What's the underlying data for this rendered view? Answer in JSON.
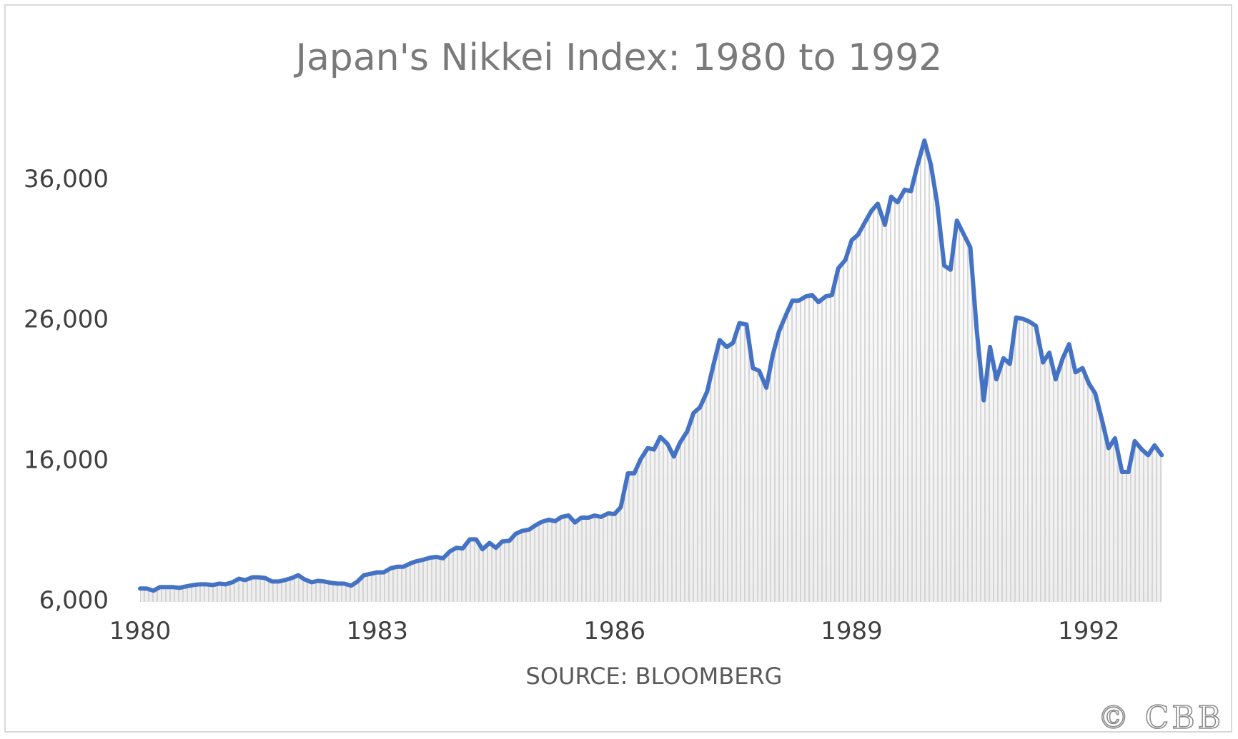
{
  "chart_data": {
    "type": "line",
    "title": "Japan's Nikkei Index: 1980 to 1992",
    "xlabel": "SOURCE: BLOOMBERG",
    "ylabel": "",
    "ylim": [
      6000,
      38800
    ],
    "xlim": [
      1980.0,
      1993.0
    ],
    "y_ticks": [
      6000,
      16000,
      26000,
      36000
    ],
    "y_tick_labels": [
      "6,000",
      "16,000",
      "26,000",
      "36,000"
    ],
    "x_ticks": [
      1980,
      1983,
      1986,
      1989,
      1992
    ],
    "x_tick_labels": [
      "1980",
      "1983",
      "1986",
      "1989",
      "1992"
    ],
    "grid": false,
    "legend": "none",
    "fill_style": "vertical-hatch-area",
    "colors": {
      "line": "#4472c4",
      "hatch": "#c9c9c9",
      "area_top": "#ffffff",
      "area_bottom": "#eeeeee"
    },
    "series": [
      {
        "values": [
          [
            1980.0,
            6800
          ],
          [
            1980.08,
            6800
          ],
          [
            1980.17,
            6650
          ],
          [
            1980.25,
            6900
          ],
          [
            1980.33,
            6900
          ],
          [
            1980.42,
            6900
          ],
          [
            1980.5,
            6850
          ],
          [
            1980.58,
            6950
          ],
          [
            1980.67,
            7050
          ],
          [
            1980.75,
            7100
          ],
          [
            1980.83,
            7100
          ],
          [
            1980.92,
            7050
          ],
          [
            1981.0,
            7150
          ],
          [
            1981.08,
            7100
          ],
          [
            1981.17,
            7250
          ],
          [
            1981.25,
            7500
          ],
          [
            1981.33,
            7400
          ],
          [
            1981.42,
            7600
          ],
          [
            1981.5,
            7600
          ],
          [
            1981.58,
            7550
          ],
          [
            1981.67,
            7300
          ],
          [
            1981.75,
            7300
          ],
          [
            1981.83,
            7400
          ],
          [
            1981.92,
            7550
          ],
          [
            1982.0,
            7750
          ],
          [
            1982.08,
            7450
          ],
          [
            1982.17,
            7250
          ],
          [
            1982.25,
            7350
          ],
          [
            1982.33,
            7300
          ],
          [
            1982.42,
            7200
          ],
          [
            1982.5,
            7150
          ],
          [
            1982.58,
            7150
          ],
          [
            1982.67,
            7000
          ],
          [
            1982.75,
            7300
          ],
          [
            1982.83,
            7750
          ],
          [
            1982.92,
            7850
          ],
          [
            1983.0,
            7950
          ],
          [
            1983.08,
            7950
          ],
          [
            1983.17,
            8250
          ],
          [
            1983.25,
            8350
          ],
          [
            1983.33,
            8350
          ],
          [
            1983.42,
            8600
          ],
          [
            1983.5,
            8750
          ],
          [
            1983.58,
            8850
          ],
          [
            1983.67,
            9000
          ],
          [
            1983.75,
            9050
          ],
          [
            1983.83,
            8950
          ],
          [
            1983.92,
            9450
          ],
          [
            1984.0,
            9700
          ],
          [
            1984.08,
            9650
          ],
          [
            1984.17,
            10300
          ],
          [
            1984.25,
            10300
          ],
          [
            1984.33,
            9600
          ],
          [
            1984.42,
            10050
          ],
          [
            1984.5,
            9700
          ],
          [
            1984.58,
            10150
          ],
          [
            1984.67,
            10200
          ],
          [
            1984.75,
            10700
          ],
          [
            1984.83,
            10900
          ],
          [
            1984.92,
            11000
          ],
          [
            1985.0,
            11300
          ],
          [
            1985.08,
            11550
          ],
          [
            1985.17,
            11700
          ],
          [
            1985.25,
            11600
          ],
          [
            1985.33,
            11900
          ],
          [
            1985.42,
            12000
          ],
          [
            1985.5,
            11500
          ],
          [
            1985.58,
            11850
          ],
          [
            1985.67,
            11850
          ],
          [
            1985.75,
            12000
          ],
          [
            1985.83,
            11900
          ],
          [
            1985.92,
            12150
          ],
          [
            1986.0,
            12100
          ],
          [
            1986.08,
            12600
          ],
          [
            1986.17,
            15000
          ],
          [
            1986.25,
            15000
          ],
          [
            1986.33,
            16000
          ],
          [
            1986.42,
            16800
          ],
          [
            1986.5,
            16700
          ],
          [
            1986.58,
            17600
          ],
          [
            1986.67,
            17100
          ],
          [
            1986.75,
            16200
          ],
          [
            1986.83,
            17200
          ],
          [
            1986.92,
            18000
          ],
          [
            1987.0,
            19300
          ],
          [
            1987.08,
            19700
          ],
          [
            1987.17,
            20800
          ],
          [
            1987.25,
            22700
          ],
          [
            1987.33,
            24500
          ],
          [
            1987.42,
            24000
          ],
          [
            1987.5,
            24300
          ],
          [
            1987.58,
            25700
          ],
          [
            1987.67,
            25600
          ],
          [
            1987.75,
            22500
          ],
          [
            1987.83,
            22300
          ],
          [
            1987.92,
            21100
          ],
          [
            1988.0,
            23400
          ],
          [
            1988.08,
            25100
          ],
          [
            1988.17,
            26300
          ],
          [
            1988.25,
            27300
          ],
          [
            1988.33,
            27300
          ],
          [
            1988.42,
            27600
          ],
          [
            1988.5,
            27700
          ],
          [
            1988.58,
            27200
          ],
          [
            1988.67,
            27600
          ],
          [
            1988.75,
            27700
          ],
          [
            1988.83,
            29600
          ],
          [
            1988.92,
            30200
          ],
          [
            1989.0,
            31600
          ],
          [
            1989.08,
            32000
          ],
          [
            1989.17,
            32900
          ],
          [
            1989.25,
            33700
          ],
          [
            1989.33,
            34200
          ],
          [
            1989.42,
            32700
          ],
          [
            1989.5,
            34700
          ],
          [
            1989.58,
            34300
          ],
          [
            1989.67,
            35200
          ],
          [
            1989.75,
            35100
          ],
          [
            1989.83,
            36900
          ],
          [
            1989.92,
            38700
          ],
          [
            1990.0,
            37000
          ],
          [
            1990.08,
            34300
          ],
          [
            1990.17,
            29800
          ],
          [
            1990.25,
            29500
          ],
          [
            1990.33,
            33000
          ],
          [
            1990.42,
            32000
          ],
          [
            1990.5,
            31100
          ],
          [
            1990.58,
            25300
          ],
          [
            1990.67,
            20200
          ],
          [
            1990.75,
            24000
          ],
          [
            1990.83,
            21700
          ],
          [
            1990.92,
            23200
          ],
          [
            1991.0,
            22800
          ],
          [
            1991.08,
            26100
          ],
          [
            1991.17,
            26000
          ],
          [
            1991.25,
            25800
          ],
          [
            1991.33,
            25500
          ],
          [
            1991.42,
            22900
          ],
          [
            1991.5,
            23600
          ],
          [
            1991.58,
            21700
          ],
          [
            1991.67,
            23200
          ],
          [
            1991.75,
            24200
          ],
          [
            1991.83,
            22200
          ],
          [
            1991.92,
            22500
          ],
          [
            1992.0,
            21400
          ],
          [
            1992.08,
            20700
          ],
          [
            1992.17,
            18700
          ],
          [
            1992.25,
            16800
          ],
          [
            1992.33,
            17500
          ],
          [
            1992.42,
            15100
          ],
          [
            1992.5,
            15100
          ],
          [
            1992.58,
            17300
          ],
          [
            1992.67,
            16700
          ],
          [
            1992.75,
            16300
          ],
          [
            1992.83,
            17000
          ],
          [
            1992.92,
            16300
          ]
        ]
      }
    ]
  },
  "watermark": "© CBB"
}
